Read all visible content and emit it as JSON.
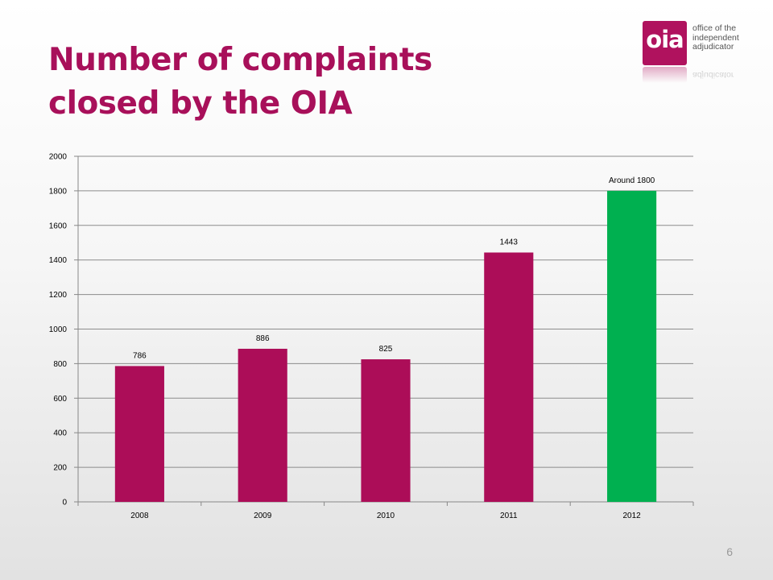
{
  "slide": {
    "title": "Number of complaints closed by the OIA",
    "page_number": "6"
  },
  "logo": {
    "mark": "oia",
    "text_lines": [
      "office of the",
      "independent",
      "adjudicator"
    ],
    "colors": {
      "brand": "#b0125e"
    }
  },
  "chart_data": {
    "type": "bar",
    "categories": [
      "2008",
      "2009",
      "2010",
      "2011",
      "2012"
    ],
    "values": [
      786,
      886,
      825,
      1443,
      1800
    ],
    "data_labels": [
      "786",
      "886",
      "825",
      "1443",
      "Around 1800"
    ],
    "colors": [
      "#ac0d58",
      "#ac0d58",
      "#ac0d58",
      "#ac0d58",
      "#00b050"
    ],
    "ylim": [
      0,
      2000
    ],
    "yticks": [
      0,
      200,
      400,
      600,
      800,
      1000,
      1200,
      1400,
      1600,
      1800,
      2000
    ],
    "grid": true,
    "title": "",
    "xlabel": "",
    "ylabel": ""
  }
}
